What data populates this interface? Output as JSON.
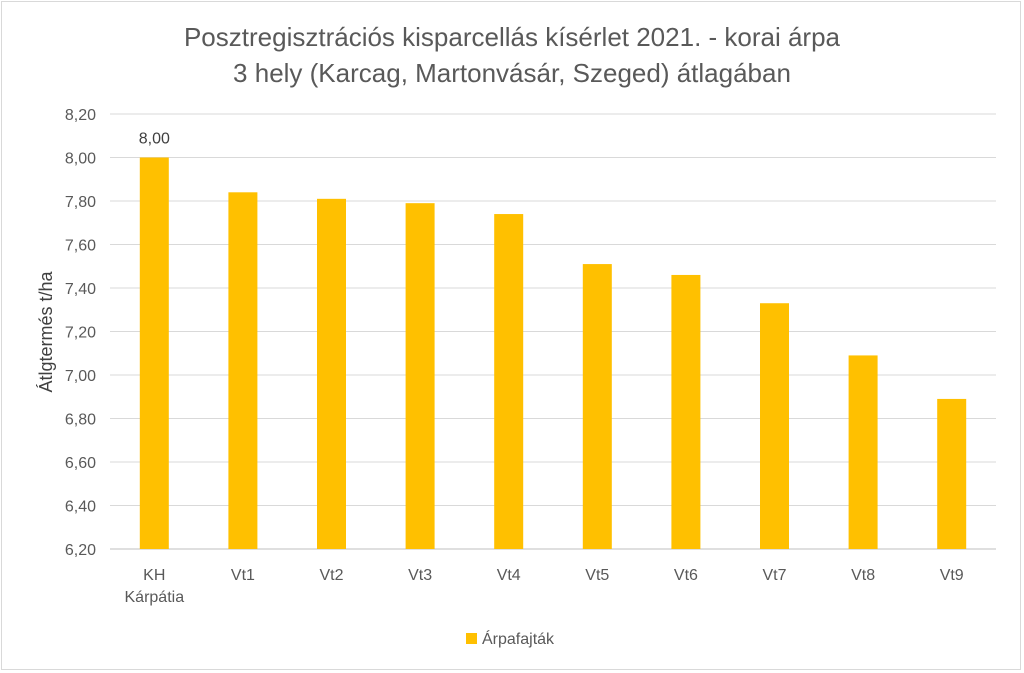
{
  "chart_data": {
    "type": "bar",
    "title_line1": "Posztregisztrációs kisparcellás kísérlet 2021. - korai árpa",
    "title_line2": "3 hely  (Karcag, Martonvásár, Szeged) átlagában",
    "ylabel": "Átlgtermés t/ha",
    "xlabel": "",
    "categories": [
      [
        "KH",
        "Kárpátia"
      ],
      [
        "Vt1"
      ],
      [
        "Vt2"
      ],
      [
        "Vt3"
      ],
      [
        "Vt4"
      ],
      [
        "Vt5"
      ],
      [
        "Vt6"
      ],
      [
        "Vt7"
      ],
      [
        "Vt8"
      ],
      [
        "Vt9"
      ]
    ],
    "series": [
      {
        "name": "Árpafajták",
        "color": "#FFC000",
        "values": [
          8.0,
          7.84,
          7.81,
          7.79,
          7.74,
          7.51,
          7.46,
          7.33,
          7.09,
          6.89
        ]
      }
    ],
    "data_labels": [
      {
        "index": 0,
        "text": "8,00"
      }
    ],
    "ylim": [
      6.2,
      8.2
    ],
    "yticks": [
      "6,20",
      "6,40",
      "6,60",
      "6,80",
      "7,00",
      "7,20",
      "7,40",
      "7,60",
      "7,80",
      "8,00",
      "8,20"
    ],
    "ytick_values": [
      6.2,
      6.4,
      6.6,
      6.8,
      7.0,
      7.2,
      7.4,
      7.6,
      7.8,
      8.0,
      8.2
    ],
    "grid": true,
    "legend_position": "bottom"
  }
}
